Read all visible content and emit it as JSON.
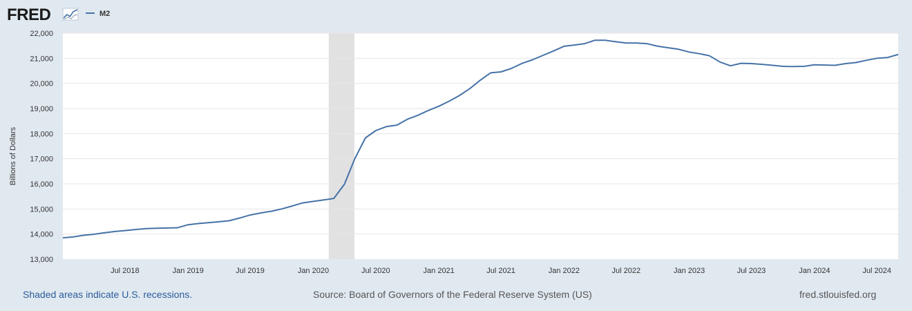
{
  "brand": {
    "logo_text": "FRED",
    "logo_color": "#1a1a1a"
  },
  "legend": {
    "label": "M2",
    "color": "#4572a7"
  },
  "chart_data": {
    "type": "line",
    "series": [
      {
        "name": "M2",
        "color": "#4572a7",
        "points": [
          [
            "2018-01-01",
            13850
          ],
          [
            "2018-02-01",
            13890
          ],
          [
            "2018-03-01",
            13950
          ],
          [
            "2018-04-01",
            13990
          ],
          [
            "2018-05-01",
            14050
          ],
          [
            "2018-06-01",
            14100
          ],
          [
            "2018-07-01",
            14140
          ],
          [
            "2018-08-01",
            14180
          ],
          [
            "2018-09-01",
            14220
          ],
          [
            "2018-10-01",
            14230
          ],
          [
            "2018-11-01",
            14240
          ],
          [
            "2018-12-01",
            14250
          ],
          [
            "2019-01-01",
            14370
          ],
          [
            "2019-02-01",
            14420
          ],
          [
            "2019-03-01",
            14450
          ],
          [
            "2019-04-01",
            14490
          ],
          [
            "2019-05-01",
            14530
          ],
          [
            "2019-06-01",
            14640
          ],
          [
            "2019-07-01",
            14760
          ],
          [
            "2019-08-01",
            14840
          ],
          [
            "2019-09-01",
            14910
          ],
          [
            "2019-10-01",
            15000
          ],
          [
            "2019-11-01",
            15120
          ],
          [
            "2019-12-01",
            15240
          ],
          [
            "2020-01-01",
            15300
          ],
          [
            "2020-02-01",
            15360
          ],
          [
            "2020-03-01",
            15420
          ],
          [
            "2020-04-01",
            15990
          ],
          [
            "2020-05-01",
            17000
          ],
          [
            "2020-06-01",
            17830
          ],
          [
            "2020-07-01",
            18120
          ],
          [
            "2020-08-01",
            18280
          ],
          [
            "2020-09-01",
            18340
          ],
          [
            "2020-10-01",
            18570
          ],
          [
            "2020-11-01",
            18730
          ],
          [
            "2020-12-01",
            18920
          ],
          [
            "2021-01-01",
            19090
          ],
          [
            "2021-02-01",
            19300
          ],
          [
            "2021-03-01",
            19510
          ],
          [
            "2021-04-01",
            19790
          ],
          [
            "2021-05-01",
            20120
          ],
          [
            "2021-06-01",
            20420
          ],
          [
            "2021-07-01",
            20460
          ],
          [
            "2021-08-01",
            20600
          ],
          [
            "2021-09-01",
            20800
          ],
          [
            "2021-10-01",
            20940
          ],
          [
            "2021-11-01",
            21120
          ],
          [
            "2021-12-01",
            21290
          ],
          [
            "2022-01-01",
            21480
          ],
          [
            "2022-02-01",
            21530
          ],
          [
            "2022-03-01",
            21580
          ],
          [
            "2022-04-01",
            21720
          ],
          [
            "2022-05-01",
            21720
          ],
          [
            "2022-06-01",
            21660
          ],
          [
            "2022-07-01",
            21610
          ],
          [
            "2022-08-01",
            21610
          ],
          [
            "2022-09-01",
            21580
          ],
          [
            "2022-10-01",
            21480
          ],
          [
            "2022-11-01",
            21420
          ],
          [
            "2022-12-01",
            21360
          ],
          [
            "2023-01-01",
            21250
          ],
          [
            "2023-02-01",
            21180
          ],
          [
            "2023-03-01",
            21100
          ],
          [
            "2023-04-01",
            20850
          ],
          [
            "2023-05-01",
            20700
          ],
          [
            "2023-06-01",
            20800
          ],
          [
            "2023-07-01",
            20790
          ],
          [
            "2023-08-01",
            20760
          ],
          [
            "2023-09-01",
            20720
          ],
          [
            "2023-10-01",
            20680
          ],
          [
            "2023-11-01",
            20670
          ],
          [
            "2023-12-01",
            20680
          ],
          [
            "2024-01-01",
            20740
          ],
          [
            "2024-02-01",
            20730
          ],
          [
            "2024-03-01",
            20720
          ],
          [
            "2024-04-01",
            20790
          ],
          [
            "2024-05-01",
            20830
          ],
          [
            "2024-06-01",
            20920
          ],
          [
            "2024-07-01",
            21000
          ],
          [
            "2024-08-01",
            21030
          ],
          [
            "2024-09-01",
            21150
          ]
        ]
      }
    ],
    "recessions": [
      {
        "start": "2020-02-15",
        "end": "2020-04-30"
      }
    ],
    "xlim": [
      "2018-01-01",
      "2024-09-01"
    ],
    "ylim": [
      13000,
      22000
    ],
    "x_ticks": [
      {
        "date": "2018-07-01",
        "label": "Jul 2018"
      },
      {
        "date": "2019-01-01",
        "label": "Jan 2019"
      },
      {
        "date": "2019-07-01",
        "label": "Jul 2019"
      },
      {
        "date": "2020-01-01",
        "label": "Jan 2020"
      },
      {
        "date": "2020-07-01",
        "label": "Jul 2020"
      },
      {
        "date": "2021-01-01",
        "label": "Jan 2021"
      },
      {
        "date": "2021-07-01",
        "label": "Jul 2021"
      },
      {
        "date": "2022-01-01",
        "label": "Jan 2022"
      },
      {
        "date": "2022-07-01",
        "label": "Jul 2022"
      },
      {
        "date": "2023-01-01",
        "label": "Jan 2023"
      },
      {
        "date": "2023-07-01",
        "label": "Jul 2023"
      },
      {
        "date": "2024-01-01",
        "label": "Jan 2024"
      },
      {
        "date": "2024-07-01",
        "label": "Jul 2024"
      }
    ],
    "y_ticks": [
      {
        "value": 13000,
        "label": "13,000"
      },
      {
        "value": 14000,
        "label": "14,000"
      },
      {
        "value": 15000,
        "label": "15,000"
      },
      {
        "value": 16000,
        "label": "16,000"
      },
      {
        "value": 17000,
        "label": "17,000"
      },
      {
        "value": 18000,
        "label": "18,000"
      },
      {
        "value": 19000,
        "label": "19,000"
      },
      {
        "value": 20000,
        "label": "20,000"
      },
      {
        "value": 21000,
        "label": "21,000"
      },
      {
        "value": 22000,
        "label": "22,000"
      }
    ],
    "ylabel": "Billions of Dollars",
    "grid": true,
    "legend_position": "top-left"
  },
  "footer": {
    "note": "Shaded areas indicate U.S. recessions.",
    "source": "Source: Board of Governors of the Federal Reserve System (US)",
    "url": "fred.stlouisfed.org"
  }
}
